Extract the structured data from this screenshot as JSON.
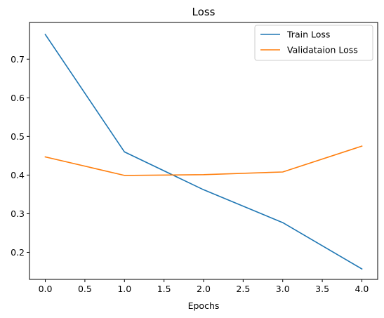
{
  "chart_data": {
    "type": "line",
    "title": "Loss",
    "xlabel": "Epochs",
    "ylabel": "",
    "xlim": [
      -0.2,
      4.2
    ],
    "ylim": [
      0.13,
      0.795
    ],
    "xticks": [
      0.0,
      0.5,
      1.0,
      1.5,
      2.0,
      2.5,
      3.0,
      3.5,
      4.0
    ],
    "xtick_labels": [
      "0.0",
      "0.5",
      "1.0",
      "1.5",
      "2.0",
      "2.5",
      "3.0",
      "3.5",
      "4.0"
    ],
    "yticks": [
      0.2,
      0.3,
      0.4,
      0.5,
      0.6,
      0.7
    ],
    "ytick_labels": [
      "0.2",
      "0.3",
      "0.4",
      "0.5",
      "0.6",
      "0.7"
    ],
    "grid": false,
    "legend": "top-right",
    "x": [
      0,
      1,
      2,
      3,
      4
    ],
    "series": [
      {
        "name": "Train Loss",
        "values": [
          0.764,
          0.46,
          0.362,
          0.277,
          0.157
        ],
        "color": "#1f77b4"
      },
      {
        "name": "Validataion Loss",
        "values": [
          0.447,
          0.399,
          0.401,
          0.408,
          0.475
        ],
        "color": "#ff7f0e"
      }
    ]
  }
}
